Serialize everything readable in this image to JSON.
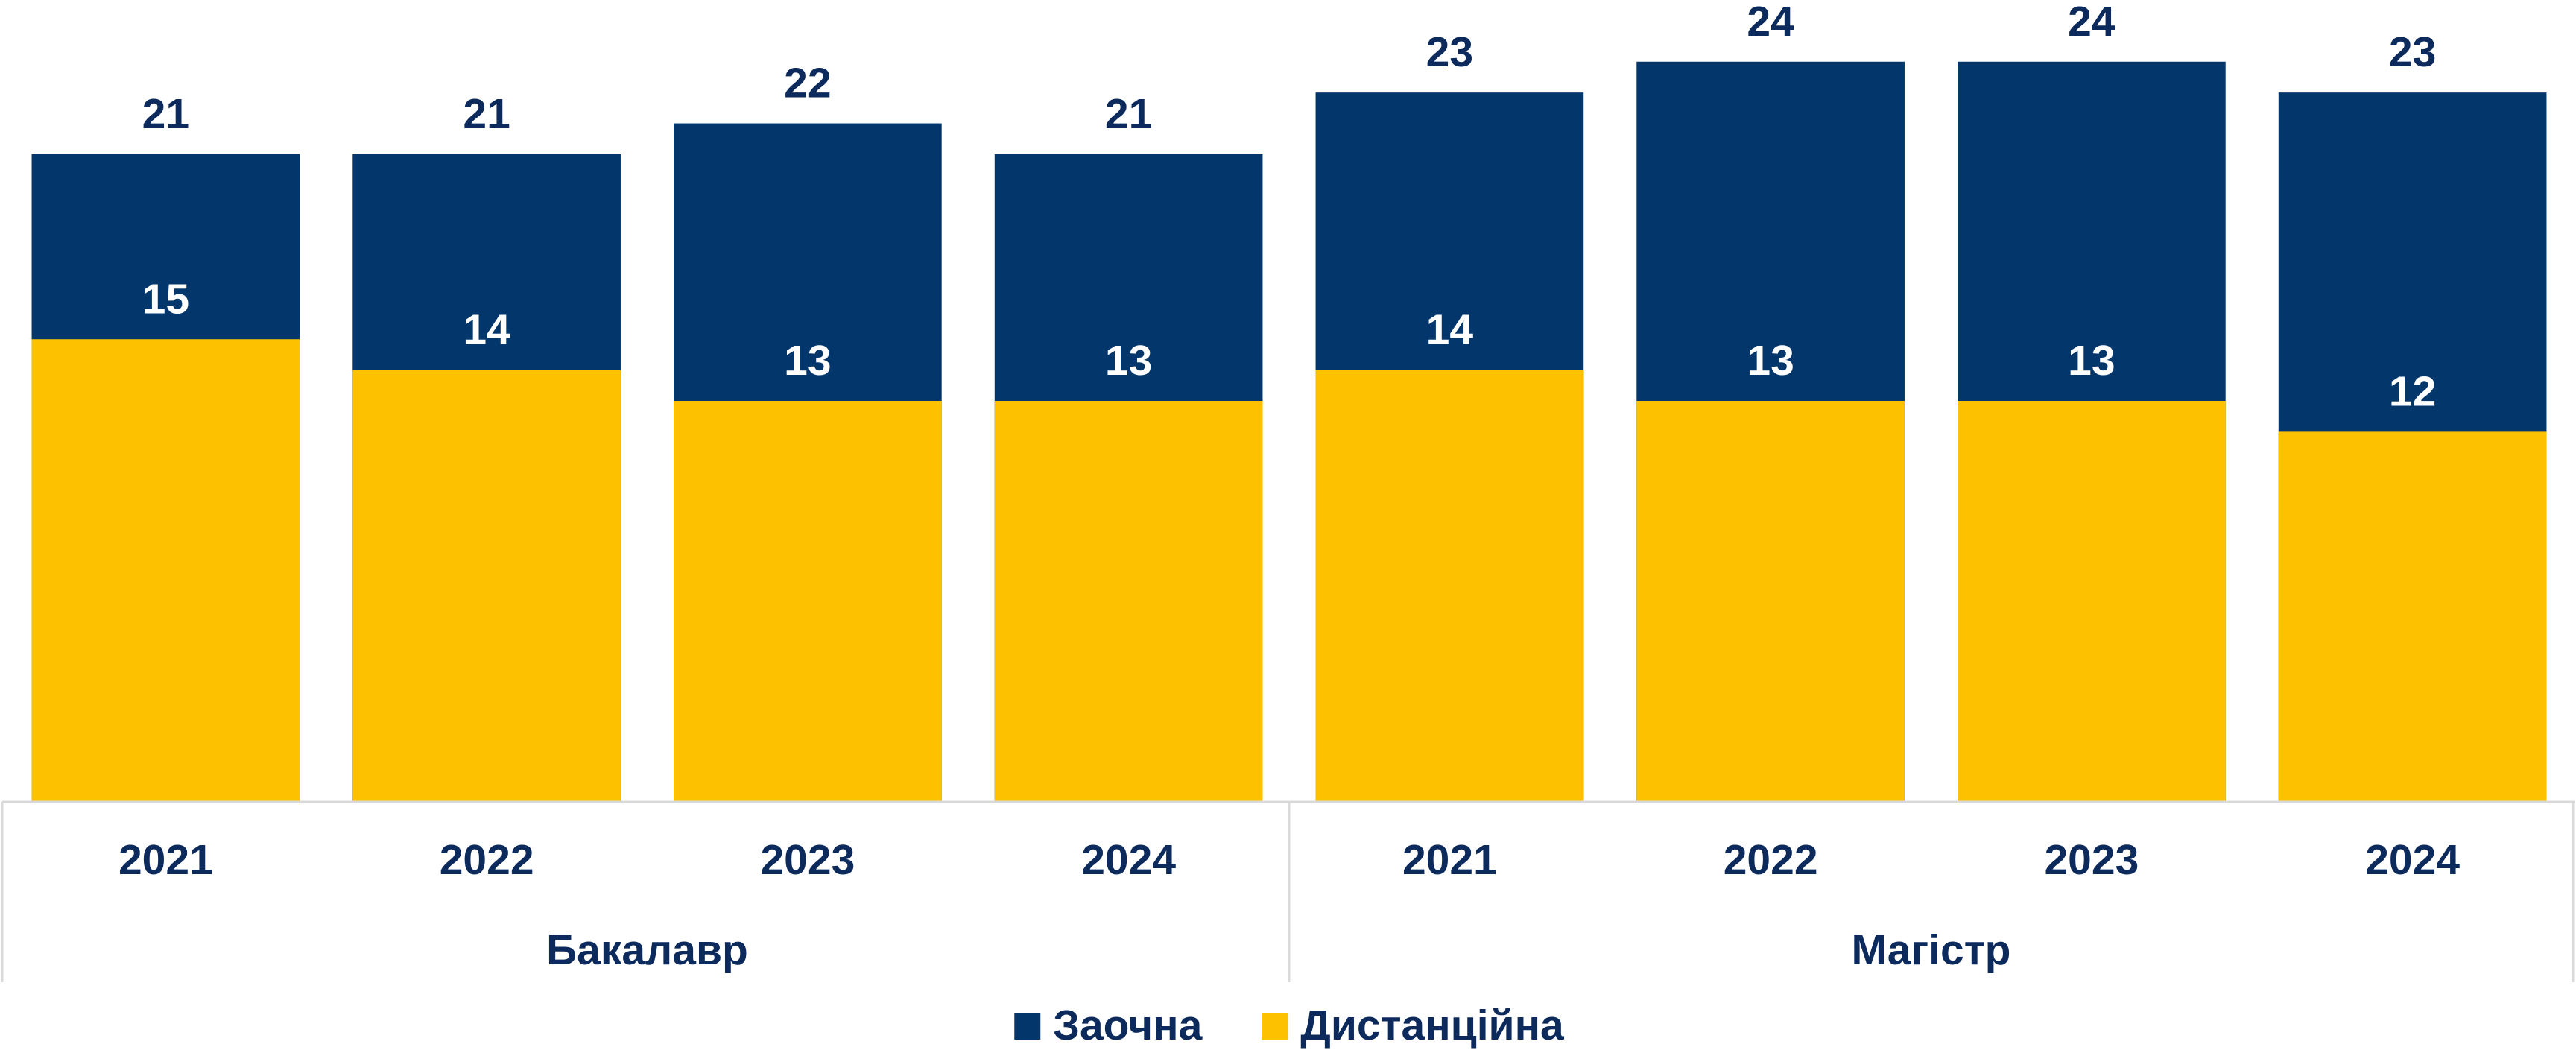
{
  "chart_data": {
    "type": "overlap-bar",
    "groups": [
      {
        "name": "Бакалавр",
        "categories": [
          "2021",
          "2022",
          "2023",
          "2024"
        ]
      },
      {
        "name": "Магістр",
        "categories": [
          "2021",
          "2022",
          "2023",
          "2024"
        ]
      }
    ],
    "series": [
      {
        "name": "Заочна",
        "color": "#03366b",
        "values": [
          21,
          21,
          22,
          21,
          23,
          24,
          24,
          23
        ]
      },
      {
        "name": "Дистанційна",
        "color": "#fdc100",
        "values": [
          15,
          14,
          13,
          13,
          14,
          13,
          13,
          12
        ]
      }
    ],
    "ylim": [
      0,
      26
    ],
    "legend": "bottom"
  }
}
